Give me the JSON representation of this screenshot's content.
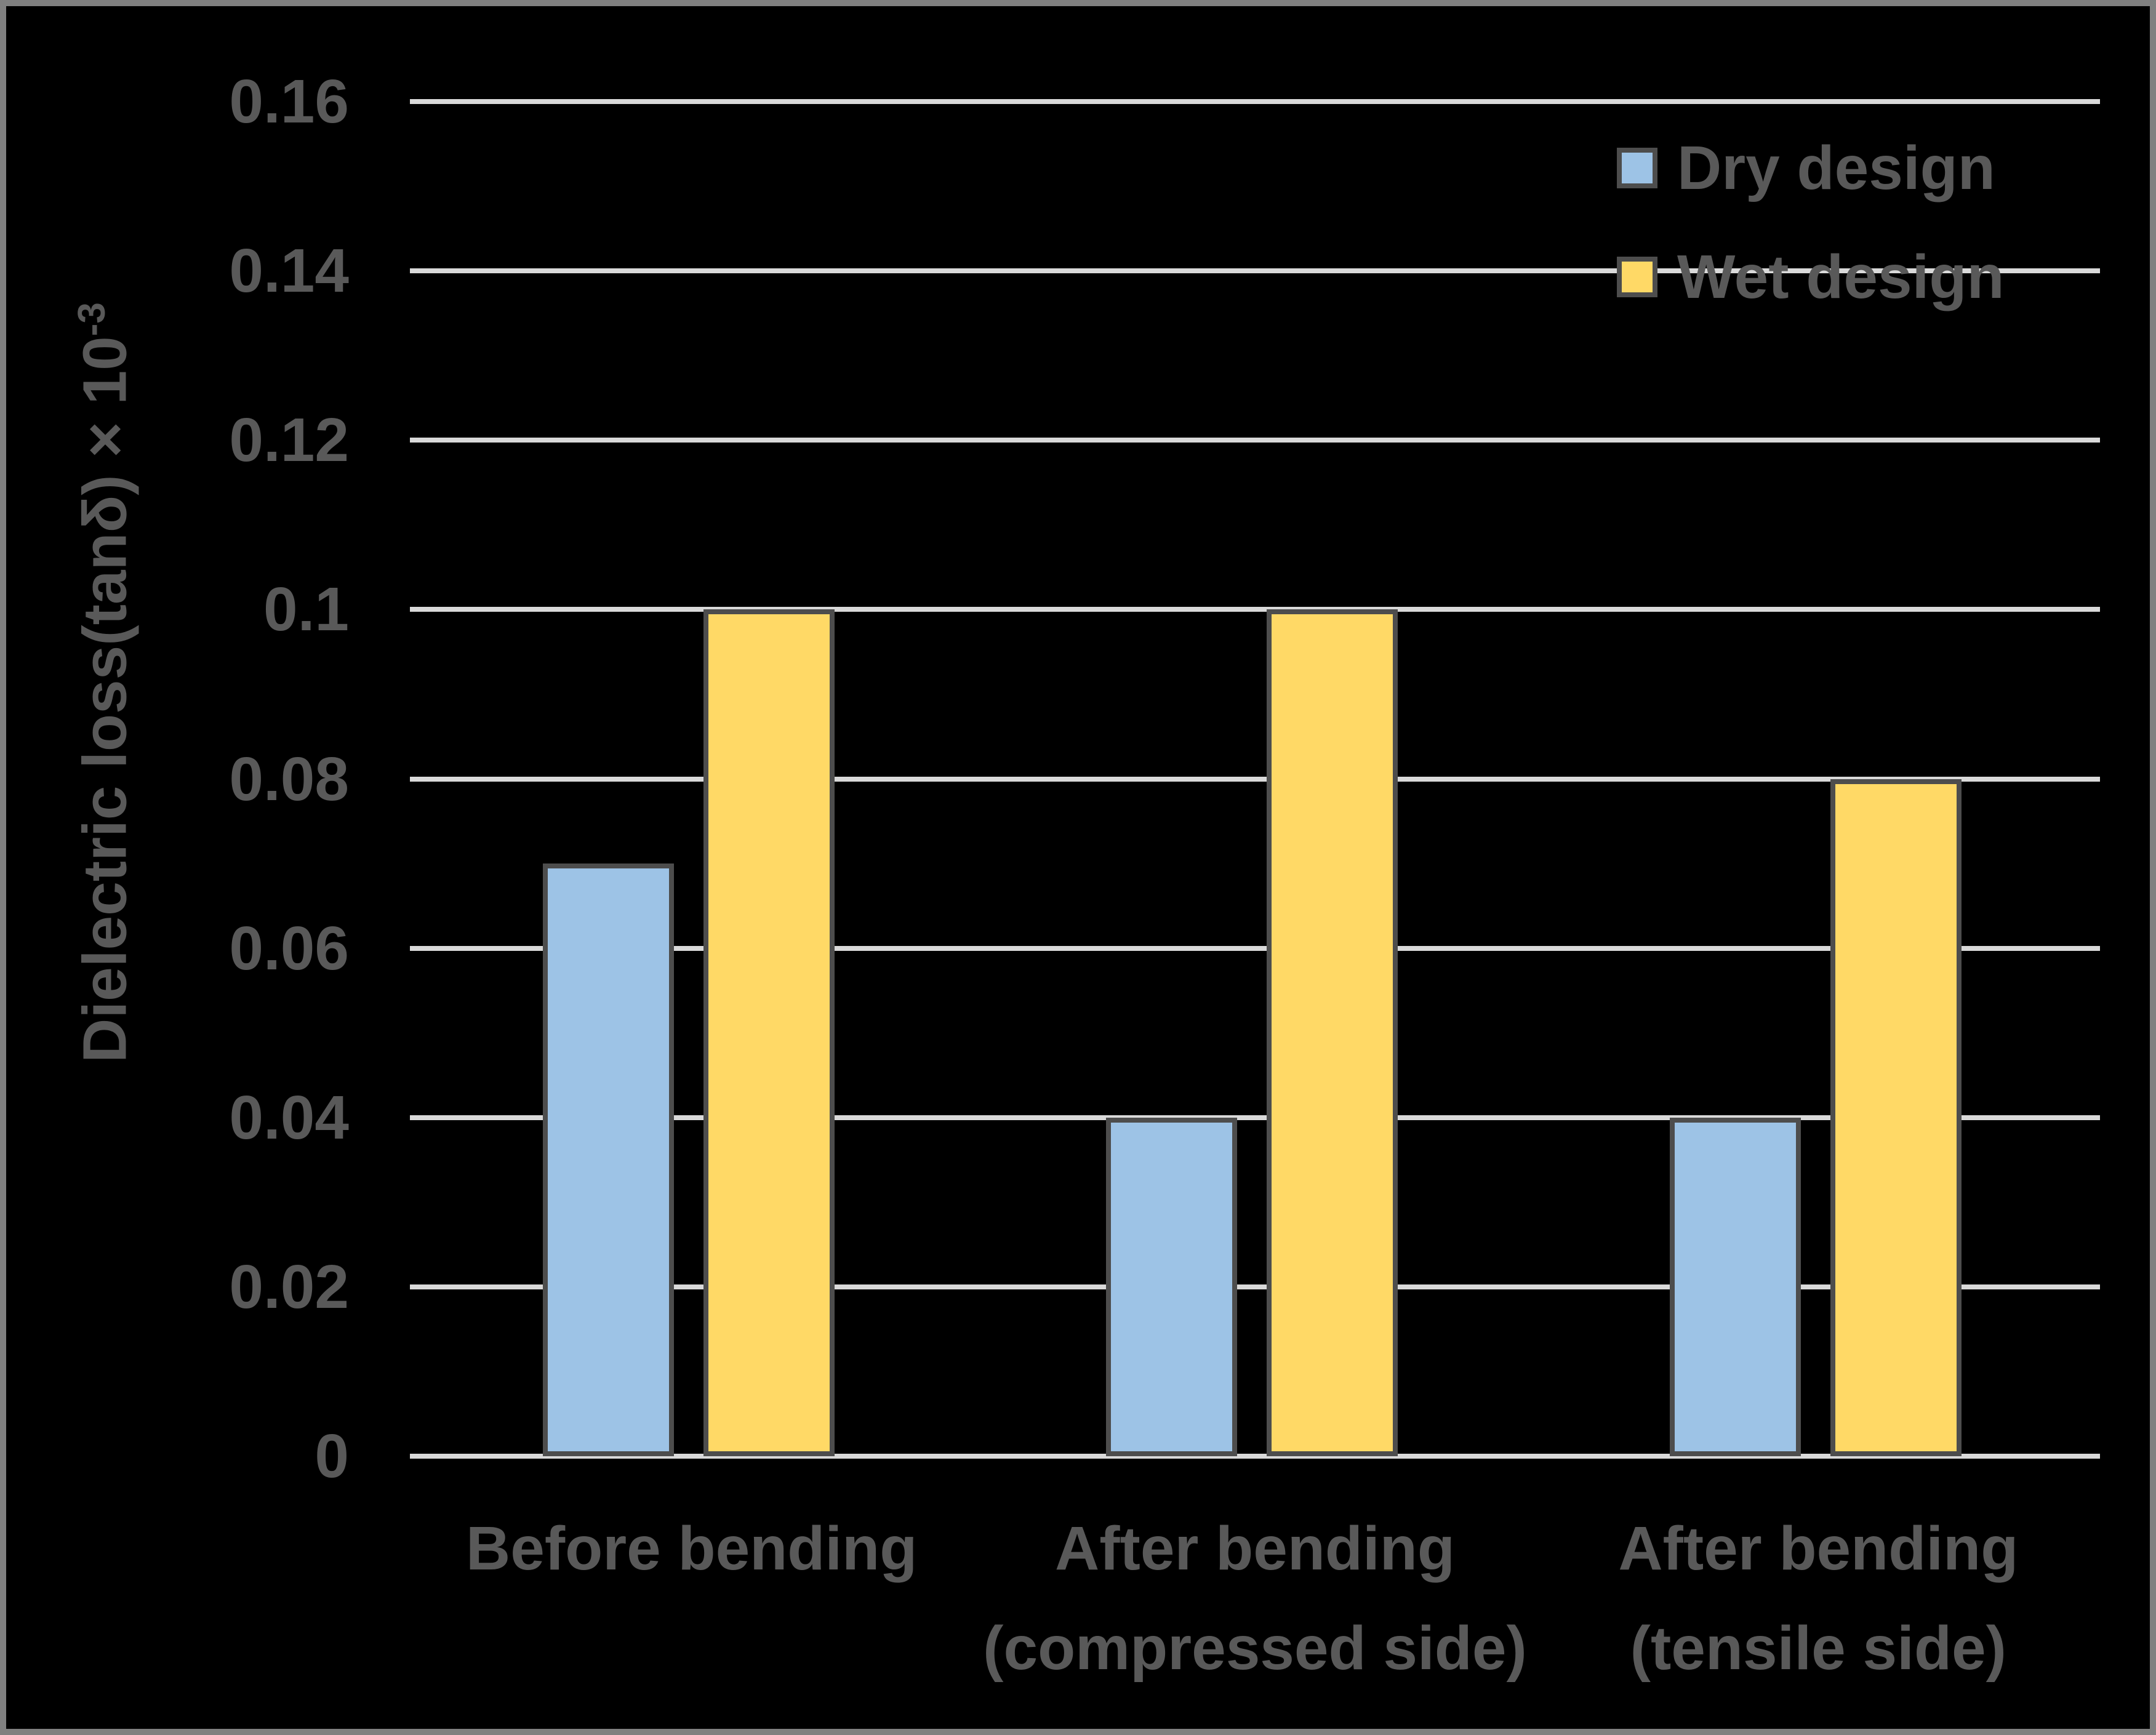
{
  "frame": {
    "background": "#000000",
    "border_color": "#808080",
    "text_color": "#595959"
  },
  "chart_data": {
    "type": "bar",
    "title": "",
    "xlabel": "",
    "ylabel": "Dielectric loss(tanδ) × 10⁻³",
    "ylabel_main": "Dielectric loss(tanδ) × 10",
    "ylabel_sup": "-3",
    "ylim": [
      0,
      0.16
    ],
    "y_tick_step": 0.02,
    "y_ticks": [
      {
        "value": 0.16,
        "label": "0.16"
      },
      {
        "value": 0.14,
        "label": "0.14"
      },
      {
        "value": 0.12,
        "label": "0.12"
      },
      {
        "value": 0.1,
        "label": "0.1"
      },
      {
        "value": 0.08,
        "label": "0.08"
      },
      {
        "value": 0.06,
        "label": "0.06"
      },
      {
        "value": 0.04,
        "label": "0.04"
      },
      {
        "value": 0.02,
        "label": "0.02"
      },
      {
        "value": 0.0,
        "label": "0"
      }
    ],
    "categories": [
      "Before bending",
      "After bending (compressed side)",
      "After bending (tensile side)"
    ],
    "category_label_lines": [
      [
        "Before bending"
      ],
      [
        "After bending",
        "(compressed side)"
      ],
      [
        "After bending",
        "(tensile side)"
      ]
    ],
    "series": [
      {
        "name": "Dry design",
        "color": "#9DC3E6",
        "values": [
          0.07,
          0.04,
          0.04
        ]
      },
      {
        "name": "Wet design",
        "color": "#FFD966",
        "values": [
          0.1,
          0.1,
          0.08
        ]
      }
    ],
    "grid": "horizontal",
    "gridline_color": "#D9D9D9",
    "baseline_color": "#D9D9D9",
    "bar_border_color": "#4D4D4D",
    "legend_position": "top-right"
  }
}
